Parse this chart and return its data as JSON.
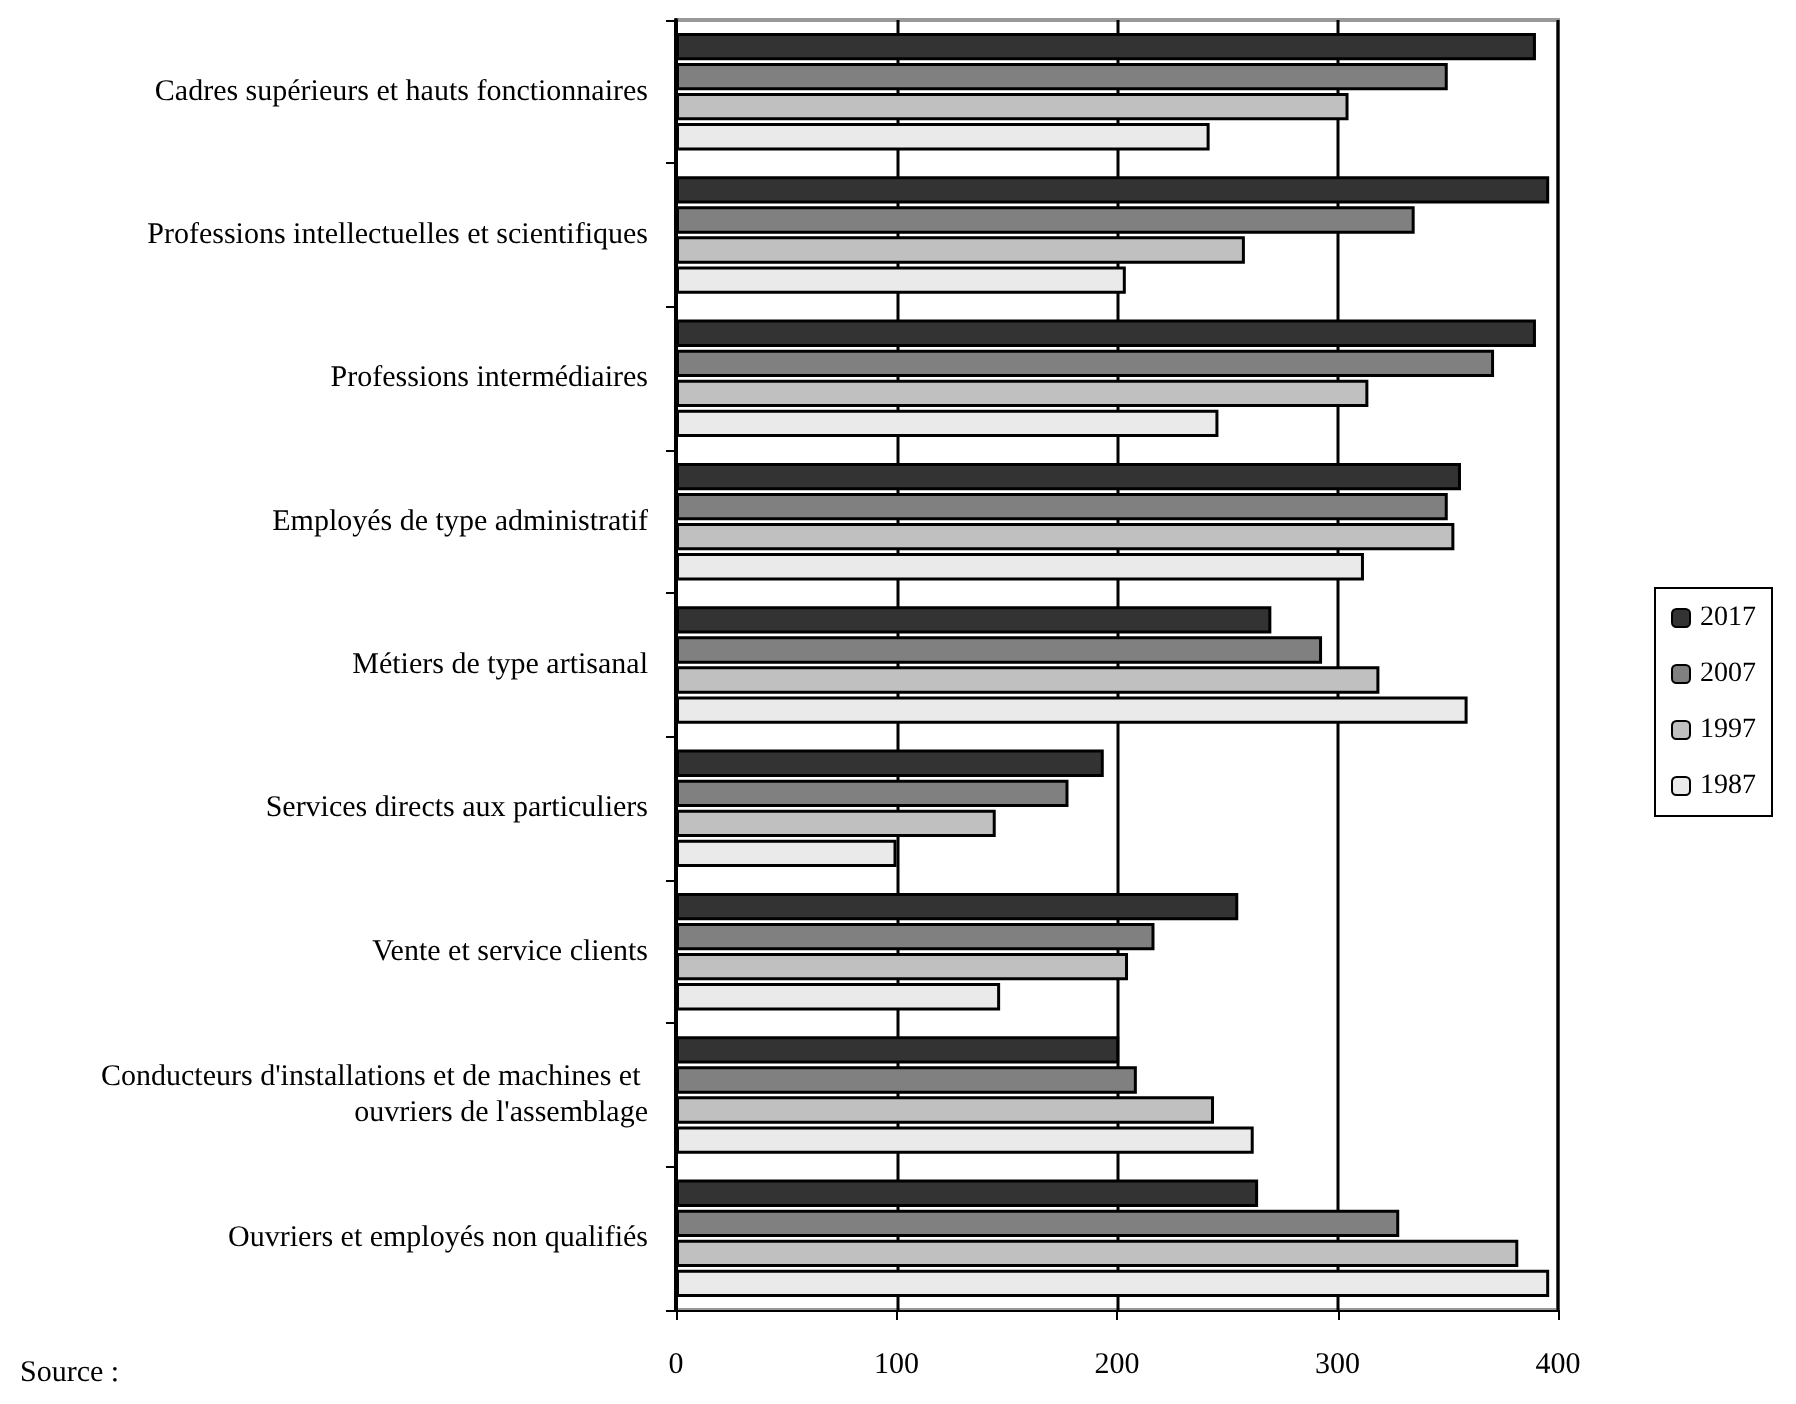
{
  "chart_data": {
    "type": "bar",
    "orientation": "horizontal",
    "categories": [
      "Cadres supérieurs et hauts fonctionnaires",
      "Professions intellectuelles et scientifiques",
      "Professions intermédiaires",
      "Employés de type administratif",
      "Métiers de type artisanal",
      "Services directs aux particuliers",
      "Vente et service clients",
      "Conducteurs d'installations et de machines et ouvriers de l'assemblage",
      "Ouvriers et employés non qualifiés"
    ],
    "series": [
      {
        "name": "2017",
        "color": "#333333",
        "values": [
          390,
          396,
          390,
          356,
          270,
          194,
          255,
          201,
          264
        ]
      },
      {
        "name": "2007",
        "color": "#808080",
        "values": [
          350,
          335,
          371,
          350,
          293,
          178,
          217,
          209,
          328
        ]
      },
      {
        "name": "1997",
        "color": "#c0c0c0",
        "values": [
          305,
          258,
          314,
          353,
          319,
          145,
          205,
          244,
          382
        ]
      },
      {
        "name": "1987",
        "color": "#eaeaea",
        "values": [
          242,
          204,
          246,
          312,
          359,
          100,
          147,
          262,
          396
        ]
      }
    ],
    "xlim": [
      0,
      400
    ],
    "xticks": [
      0,
      100,
      200,
      300,
      400
    ],
    "grid": "x",
    "legend": "right",
    "annotations": [
      "Source :"
    ]
  }
}
